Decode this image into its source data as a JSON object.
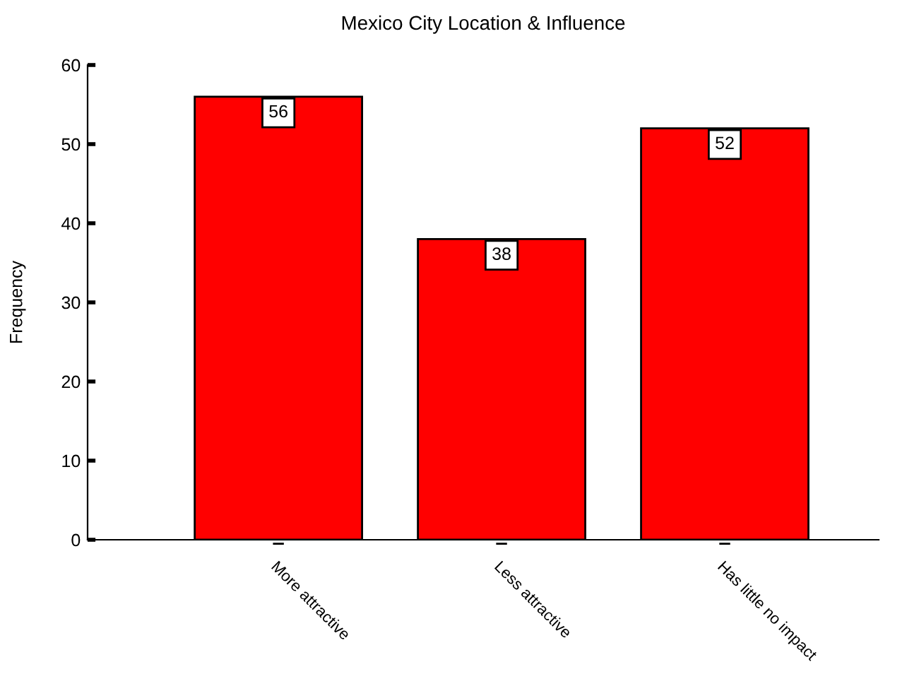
{
  "chart_data": {
    "type": "bar",
    "title": "Mexico City Location & Influence",
    "ylabel": "Frequency",
    "categories": [
      "More attractive",
      "Less attractive",
      "Has little no impact"
    ],
    "values": [
      56,
      38,
      52
    ],
    "color": "#ff0000",
    "ylim": [
      0,
      60
    ],
    "yticks": [
      0,
      10,
      20,
      30,
      40,
      50,
      60
    ],
    "grid": false,
    "data_labels": true
  }
}
